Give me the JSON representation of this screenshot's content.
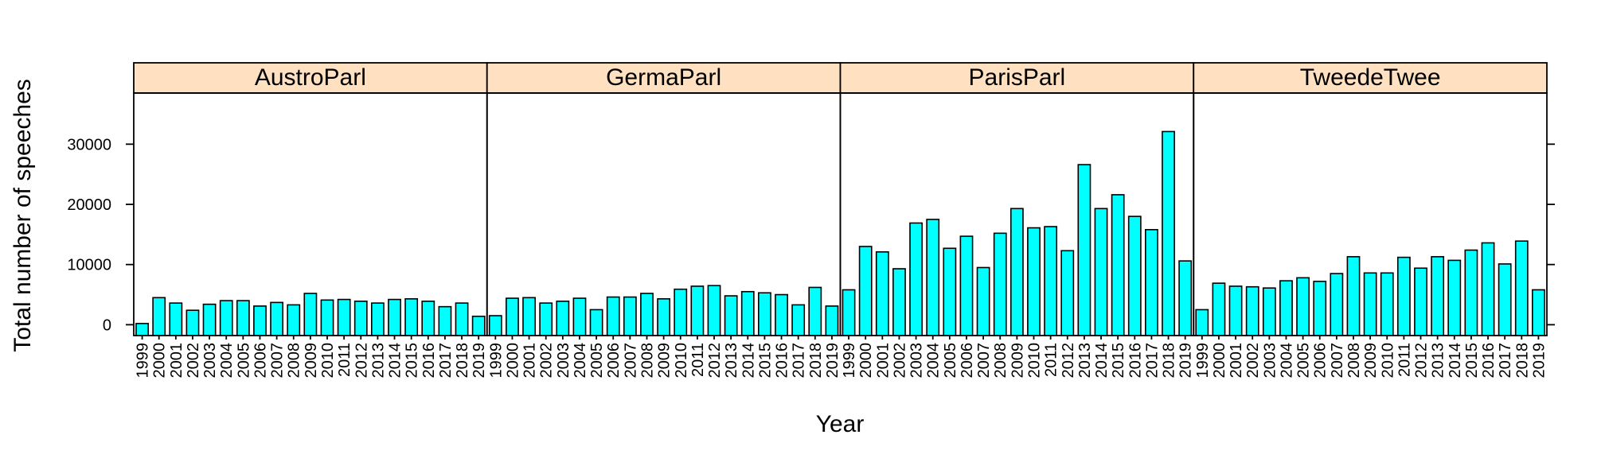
{
  "chart_data": {
    "type": "bar",
    "xlabel": "Year",
    "ylabel": "Total number of speeches",
    "ylim": [
      -1800,
      38500
    ],
    "yticks": [
      0,
      10000,
      20000,
      30000
    ],
    "years": [
      "1999",
      "2000",
      "2001",
      "2002",
      "2003",
      "2004",
      "2005",
      "2006",
      "2007",
      "2008",
      "2009",
      "2010",
      "2011",
      "2012",
      "2013",
      "2014",
      "2015",
      "2016",
      "2017",
      "2018",
      "2019"
    ],
    "bar_color": "#00ffff",
    "strip_color": "#ffe0c0",
    "panels": [
      {
        "name": "AustroParl",
        "values": [
          200,
          4500,
          3600,
          2400,
          3400,
          4000,
          4000,
          3100,
          3700,
          3300,
          5200,
          4100,
          4200,
          3900,
          3600,
          4200,
          4300,
          3900,
          3000,
          3600,
          1400
        ]
      },
      {
        "name": "GermaParl",
        "values": [
          1500,
          4400,
          4500,
          3600,
          3900,
          4400,
          2500,
          4600,
          4600,
          5200,
          4300,
          5900,
          6400,
          6500,
          4800,
          5500,
          5300,
          5000,
          3300,
          6200,
          3100
        ]
      },
      {
        "name": "ParisParl",
        "values": [
          5800,
          13000,
          12100,
          9300,
          16900,
          17500,
          12700,
          14700,
          9500,
          15200,
          19300,
          16100,
          16300,
          12300,
          26600,
          19300,
          21600,
          18000,
          15800,
          32100,
          10600
        ]
      },
      {
        "name": "TweedeTwee",
        "values": [
          2500,
          6900,
          6400,
          6300,
          6100,
          7300,
          7800,
          7200,
          8500,
          11300,
          8600,
          8600,
          11200,
          9400,
          11300,
          10700,
          12400,
          13600,
          10100,
          13900,
          5800
        ]
      }
    ]
  }
}
